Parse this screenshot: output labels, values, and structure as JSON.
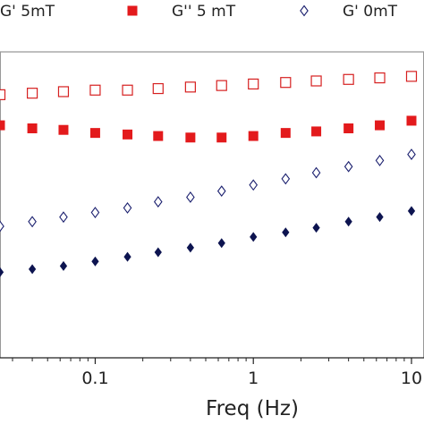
{
  "chart_data": {
    "type": "scatter",
    "xlabel": "Freq (Hz)",
    "ylabel": "",
    "xscale": "log",
    "xlim": [
      0.025,
      12
    ],
    "ylim": [
      0,
      1
    ],
    "x_ticks": [
      {
        "value": 0.1,
        "label": "0.1"
      },
      {
        "value": 1,
        "label": "1"
      },
      {
        "value": 10,
        "label": "10"
      }
    ],
    "legend": {
      "placement": "top"
    },
    "series": [
      {
        "name": "G' 5mT",
        "marker": "square-open",
        "color": "#d62020",
        "x": [
          0.025,
          0.04,
          0.063,
          0.1,
          0.16,
          0.25,
          0.4,
          0.63,
          1.0,
          1.6,
          2.5,
          4.0,
          6.3,
          10.0
        ],
        "y": [
          0.86,
          0.865,
          0.87,
          0.875,
          0.875,
          0.88,
          0.885,
          0.89,
          0.895,
          0.9,
          0.905,
          0.91,
          0.915,
          0.92
        ]
      },
      {
        "name": "G'' 5 mT",
        "marker": "square-filled",
        "color": "#e31a1c",
        "x": [
          0.025,
          0.04,
          0.063,
          0.1,
          0.16,
          0.25,
          0.4,
          0.63,
          1.0,
          1.6,
          2.5,
          4.0,
          6.3,
          10.0
        ],
        "y": [
          0.76,
          0.75,
          0.745,
          0.735,
          0.73,
          0.725,
          0.72,
          0.72,
          0.725,
          0.735,
          0.74,
          0.75,
          0.76,
          0.775
        ]
      },
      {
        "name": "G' 0mT",
        "marker": "diamond-open",
        "color": "#1a1f6e",
        "x": [
          0.025,
          0.04,
          0.063,
          0.1,
          0.16,
          0.25,
          0.4,
          0.63,
          1.0,
          1.6,
          2.5,
          4.0,
          6.3,
          10.0
        ],
        "y": [
          0.43,
          0.445,
          0.46,
          0.475,
          0.49,
          0.51,
          0.525,
          0.545,
          0.565,
          0.585,
          0.605,
          0.625,
          0.645,
          0.665
        ]
      },
      {
        "name": "",
        "marker": "diamond-filled",
        "color": "#0d1450",
        "x": [
          0.025,
          0.04,
          0.063,
          0.1,
          0.16,
          0.25,
          0.4,
          0.63,
          1.0,
          1.6,
          2.5,
          4.0,
          6.3,
          10.0
        ],
        "y": [
          0.28,
          0.29,
          0.3,
          0.315,
          0.33,
          0.345,
          0.36,
          0.375,
          0.395,
          0.41,
          0.425,
          0.445,
          0.46,
          0.48
        ]
      }
    ]
  }
}
